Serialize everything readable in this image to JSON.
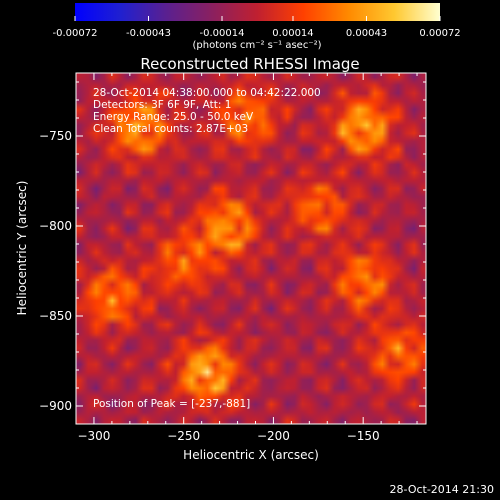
{
  "colorbar": {
    "tick_labels": [
      "-0.00072",
      "-0.00043",
      "-0.00014",
      "0.00014",
      "0.00043",
      "0.00072"
    ],
    "tick_values": [
      -0.00072,
      -0.00043,
      -0.00014,
      0.00014,
      0.00043,
      0.00072
    ],
    "range": [
      -0.00072,
      0.00072
    ],
    "units_label": "(photons cm⁻² s⁻¹ asec⁻²)",
    "colors": [
      "#0000ff",
      "#2020d0",
      "#5a2090",
      "#8a2060",
      "#c02030",
      "#ff4000",
      "#ff8a00",
      "#ffc830",
      "#ffffd0"
    ]
  },
  "chart_data": {
    "type": "heatmap",
    "title": "Reconstructed RHESSI Image",
    "xlabel": "Heliocentric X (arcsec)",
    "ylabel": "Heliocentric Y (arcsec)",
    "xlim": [
      -310,
      -115
    ],
    "ylim": [
      -910,
      -715
    ],
    "x_ticks": [
      -300,
      -250,
      -200,
      -150
    ],
    "y_ticks": [
      -900,
      -850,
      -800,
      -750
    ],
    "x_tick_labels": [
      "−300",
      "−250",
      "−200",
      "−150"
    ],
    "y_tick_labels": [
      "−900",
      "−850",
      "−800",
      "−750"
    ],
    "peak_position": [
      -237,
      -881
    ],
    "bright_regions": [
      {
        "x": -237,
        "y": -881,
        "level": 1.0
      },
      {
        "x": -150,
        "y": -745,
        "level": 0.95
      },
      {
        "x": -275,
        "y": -745,
        "level": 0.85
      },
      {
        "x": -225,
        "y": -800,
        "level": 0.85
      },
      {
        "x": -215,
        "y": -740,
        "level": 0.7
      },
      {
        "x": -290,
        "y": -840,
        "level": 0.7
      },
      {
        "x": -150,
        "y": -830,
        "level": 0.7
      },
      {
        "x": -130,
        "y": -870,
        "level": 0.65
      },
      {
        "x": -250,
        "y": -820,
        "level": 0.6
      },
      {
        "x": -175,
        "y": -790,
        "level": 0.6
      }
    ],
    "background_level": 0.2,
    "annotations": {
      "time": "28-Oct-2014 04:38:00.000 to 04:42:22.000",
      "detectors": "Detectors: 3F 6F 9F, Att: 1",
      "energy": "Energy Range: 25.0 - 50.0 keV",
      "clean": "Clean      Total counts: 2.87E+03",
      "peak": "Position of Peak = [-237,-881]"
    }
  },
  "footer": {
    "timestamp": "28-Oct-2014 21:30"
  }
}
